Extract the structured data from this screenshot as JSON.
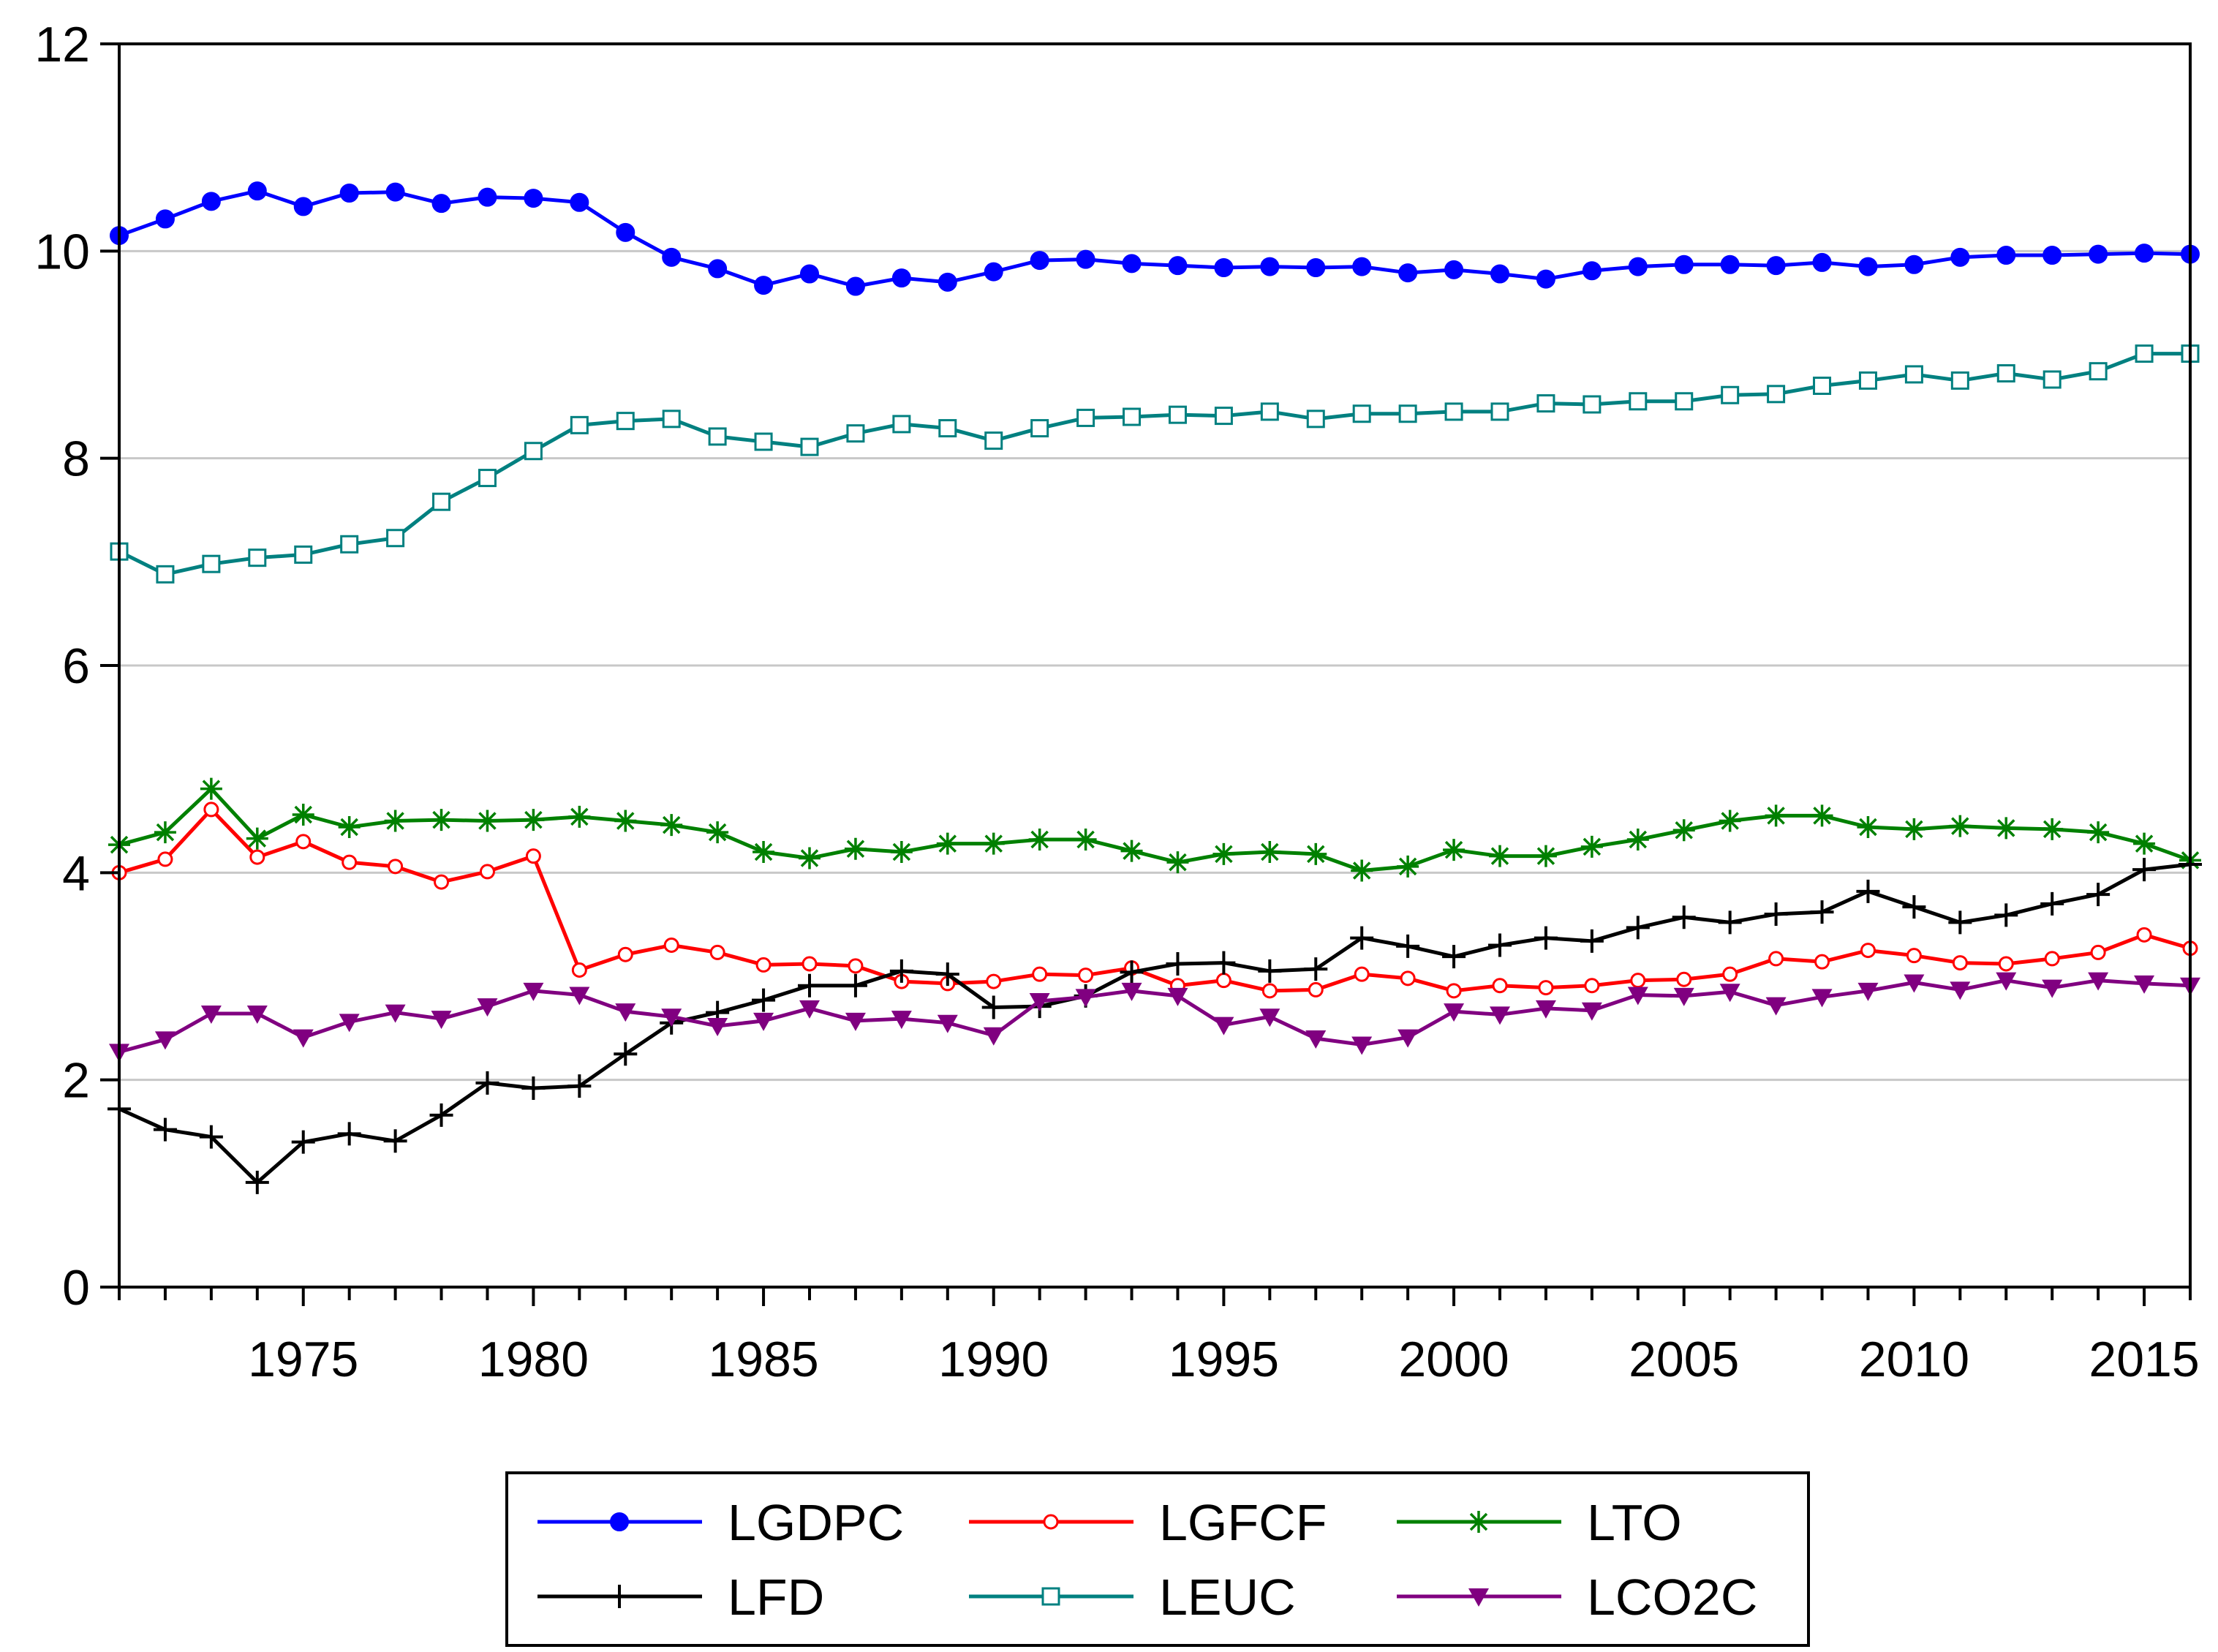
{
  "chart_data": {
    "type": "line",
    "title": "",
    "xlabel": "",
    "ylabel": "",
    "xlim": [
      1971,
      2016
    ],
    "ylim": [
      0,
      12
    ],
    "grid": "horizontal",
    "legend_position": "bottom-center",
    "y_ticks": [
      0,
      2,
      4,
      6,
      8,
      10,
      12
    ],
    "y_tick_labels": [
      "0",
      "2",
      "4",
      "6",
      "8",
      "10",
      "12"
    ],
    "x_ticks": [
      1975,
      1980,
      1985,
      1990,
      1995,
      2000,
      2005,
      2010,
      2015
    ],
    "x_tick_labels": [
      "1975",
      "1980",
      "1985",
      "1990",
      "1995",
      "2000",
      "2005",
      "2010",
      "2015"
    ],
    "x": [
      1971,
      1972,
      1973,
      1974,
      1975,
      1976,
      1977,
      1978,
      1979,
      1980,
      1981,
      1982,
      1983,
      1984,
      1985,
      1986,
      1987,
      1988,
      1989,
      1990,
      1991,
      1992,
      1993,
      1994,
      1995,
      1996,
      1997,
      1998,
      1999,
      2000,
      2001,
      2002,
      2003,
      2004,
      2005,
      2006,
      2007,
      2008,
      2009,
      2010,
      2011,
      2012,
      2013,
      2014,
      2015,
      2016
    ],
    "series": [
      {
        "name": "LGDPC",
        "color": "#0000ff",
        "marker": "filled-circle",
        "values": [
          10.15,
          10.31,
          10.48,
          10.58,
          10.43,
          10.56,
          10.57,
          10.46,
          10.52,
          10.51,
          10.47,
          10.18,
          9.94,
          9.83,
          9.67,
          9.78,
          9.66,
          9.74,
          9.7,
          9.8,
          9.91,
          9.92,
          9.88,
          9.86,
          9.84,
          9.85,
          9.84,
          9.85,
          9.79,
          9.82,
          9.78,
          9.73,
          9.81,
          9.85,
          9.87,
          9.87,
          9.86,
          9.89,
          9.85,
          9.87,
          9.94,
          9.96,
          9.96,
          9.97,
          9.98,
          9.97
        ]
      },
      {
        "name": "LGFCF",
        "color": "#ff0000",
        "marker": "open-circle",
        "values": [
          4.0,
          4.13,
          4.61,
          4.15,
          4.3,
          4.1,
          4.06,
          3.91,
          4.01,
          4.16,
          3.06,
          3.21,
          3.3,
          3.23,
          3.11,
          3.12,
          3.1,
          2.95,
          2.93,
          2.95,
          3.02,
          3.01,
          3.08,
          2.91,
          2.96,
          2.86,
          2.87,
          3.02,
          2.98,
          2.86,
          2.91,
          2.89,
          2.91,
          2.96,
          2.97,
          3.02,
          3.17,
          3.14,
          3.25,
          3.2,
          3.13,
          3.12,
          3.17,
          3.23,
          3.4,
          3.27
        ]
      },
      {
        "name": "LTO",
        "color": "#008000",
        "marker": "asterisk",
        "values": [
          4.27,
          4.39,
          4.81,
          4.33,
          4.56,
          4.44,
          4.5,
          4.51,
          4.5,
          4.51,
          4.54,
          4.5,
          4.46,
          4.39,
          4.2,
          4.14,
          4.23,
          4.2,
          4.28,
          4.28,
          4.32,
          4.32,
          4.21,
          4.1,
          4.18,
          4.2,
          4.18,
          4.02,
          4.06,
          4.22,
          4.16,
          4.16,
          4.25,
          4.32,
          4.41,
          4.5,
          4.55,
          4.55,
          4.44,
          4.42,
          4.45,
          4.43,
          4.42,
          4.39,
          4.28,
          4.12
        ]
      },
      {
        "name": "LFD",
        "color": "#000000",
        "marker": "plus",
        "values": [
          1.72,
          1.52,
          1.45,
          1.01,
          1.4,
          1.48,
          1.41,
          1.66,
          1.97,
          1.92,
          1.94,
          2.25,
          2.55,
          2.65,
          2.77,
          2.91,
          2.91,
          3.05,
          3.02,
          2.7,
          2.71,
          2.81,
          3.04,
          3.12,
          3.13,
          3.05,
          3.07,
          3.37,
          3.29,
          3.19,
          3.3,
          3.37,
          3.34,
          3.47,
          3.57,
          3.52,
          3.6,
          3.62,
          3.82,
          3.67,
          3.52,
          3.59,
          3.7,
          3.79,
          4.03,
          4.08
        ]
      },
      {
        "name": "LEUC",
        "color": "#008080",
        "marker": "open-square",
        "values": [
          7.1,
          6.88,
          6.98,
          7.04,
          7.07,
          7.17,
          7.23,
          7.58,
          7.81,
          8.07,
          8.32,
          8.36,
          8.38,
          8.21,
          8.16,
          8.11,
          8.24,
          8.33,
          8.29,
          8.17,
          8.29,
          8.39,
          8.4,
          8.42,
          8.41,
          8.45,
          8.38,
          8.43,
          8.43,
          8.45,
          8.45,
          8.53,
          8.52,
          8.55,
          8.55,
          8.61,
          8.62,
          8.7,
          8.75,
          8.81,
          8.75,
          8.82,
          8.76,
          8.84,
          9.01,
          9.01
        ]
      },
      {
        "name": "LCO2C",
        "color": "#800080",
        "marker": "filled-triangle-down",
        "values": [
          2.27,
          2.39,
          2.64,
          2.64,
          2.41,
          2.56,
          2.65,
          2.59,
          2.71,
          2.86,
          2.82,
          2.66,
          2.61,
          2.52,
          2.57,
          2.69,
          2.57,
          2.59,
          2.55,
          2.43,
          2.76,
          2.8,
          2.86,
          2.81,
          2.53,
          2.61,
          2.4,
          2.34,
          2.41,
          2.66,
          2.63,
          2.69,
          2.67,
          2.82,
          2.81,
          2.85,
          2.72,
          2.8,
          2.86,
          2.94,
          2.87,
          2.96,
          2.89,
          2.96,
          2.93,
          2.91
        ]
      }
    ]
  }
}
